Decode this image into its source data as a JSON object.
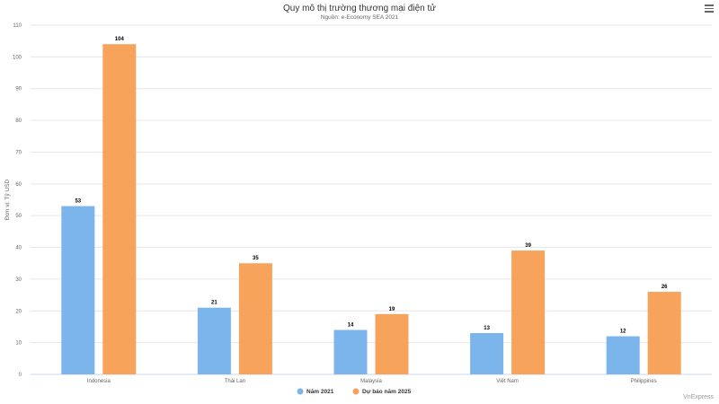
{
  "header": {
    "title": "Quy mô thị trường thương mại điện tử",
    "subtitle": "Nguồn: e-Economy SEA 2021",
    "menu_icon": "hamburger-menu-icon"
  },
  "credits": "VnExpress",
  "colors": {
    "series_2021": "#7cb5ec",
    "series_2025": "#f7a35c",
    "grid": "#e6e6e6",
    "axis": "#ccd6eb",
    "text": "#666666"
  },
  "chart_data": {
    "type": "bar",
    "title": "Quy mô thị trường thương mại điện tử",
    "subtitle": "Nguồn: e-Economy SEA 2021",
    "xlabel": "",
    "ylabel": "Đơn vị: Tỷ USD",
    "ylim": [
      0,
      110
    ],
    "yticks": [
      0,
      10,
      20,
      30,
      40,
      50,
      60,
      70,
      80,
      90,
      100,
      110
    ],
    "categories": [
      "Indonesia",
      "Thái Lan",
      "Malaysia",
      "Việt Nam",
      "Philippines"
    ],
    "series": [
      {
        "name": "Năm 2021",
        "color": "#7cb5ec",
        "values": [
          53,
          21,
          14,
          13,
          12
        ]
      },
      {
        "name": "Dự báo năm 2025",
        "color": "#f7a35c",
        "values": [
          104,
          35,
          19,
          39,
          26
        ]
      }
    ],
    "grid": true,
    "legend": "bottom-center",
    "data_labels": true
  }
}
